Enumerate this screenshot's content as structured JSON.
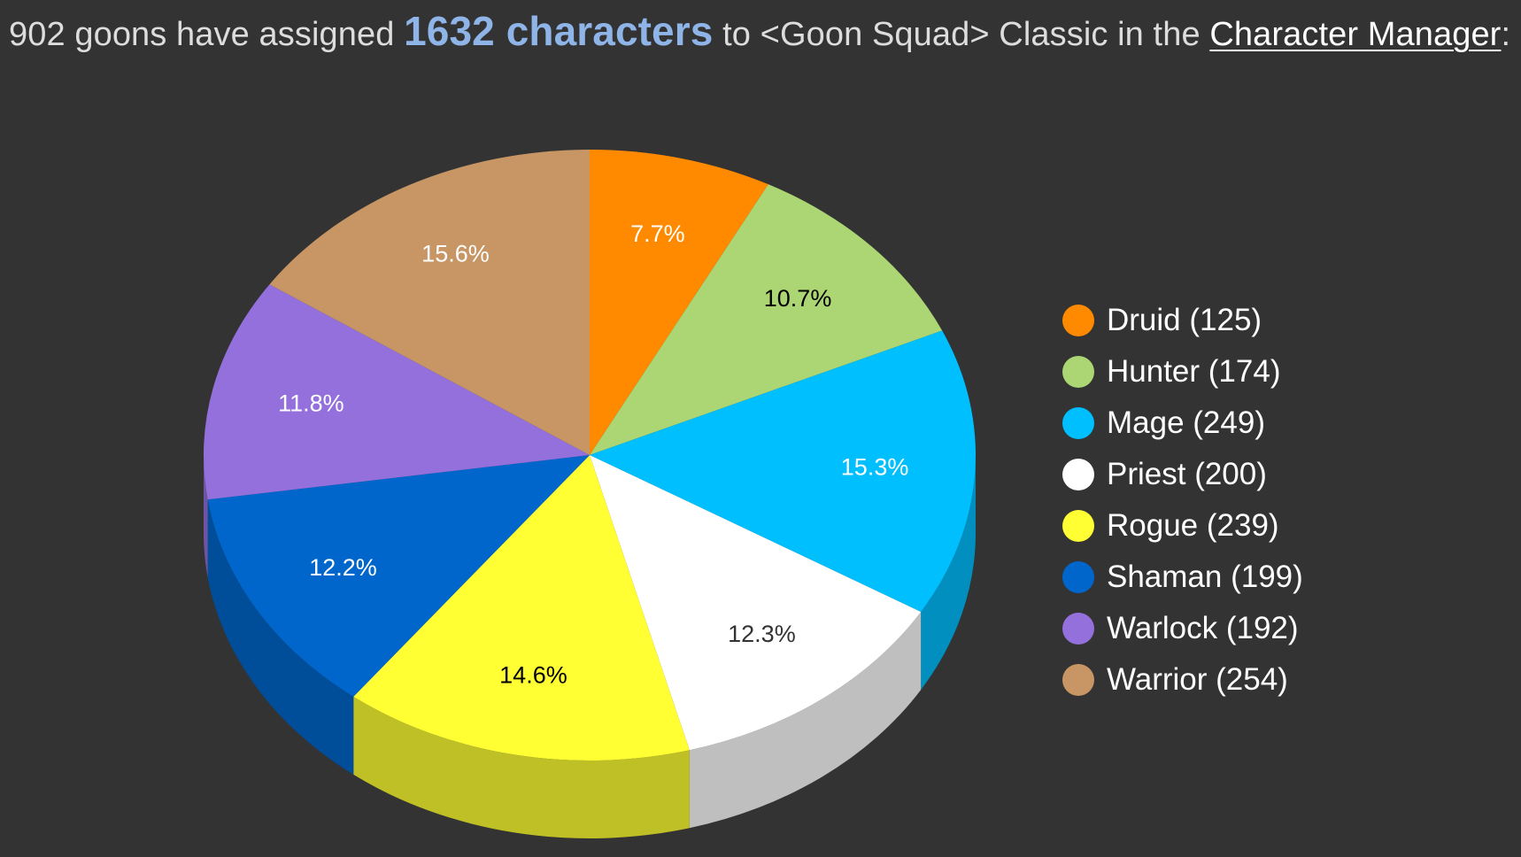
{
  "header": {
    "prefix": "902 goons have assigned",
    "count_text": "1632 characters",
    "middle": "to <Goon Squad> Classic in the",
    "link_text": "Character Manager",
    "suffix": ":"
  },
  "chart_data": {
    "type": "pie",
    "style": "3d",
    "total": 1632,
    "legend_position": "right",
    "slices": [
      {
        "name": "Druid",
        "value": 125,
        "label": "7.7%",
        "color": "#ff8a00",
        "label_color": "#ffffff",
        "legend": "Druid (125)"
      },
      {
        "name": "Hunter",
        "value": 174,
        "label": "10.7%",
        "color": "#acd573",
        "label_color": "#000000",
        "legend": "Hunter (174)"
      },
      {
        "name": "Mage",
        "value": 249,
        "label": "15.3%",
        "color": "#00bfff",
        "label_color": "#ffffff",
        "legend": "Mage (249)"
      },
      {
        "name": "Priest",
        "value": 200,
        "label": "12.3%",
        "color": "#ffffff",
        "label_color": "#333333",
        "legend": "Priest (200)"
      },
      {
        "name": "Rogue",
        "value": 239,
        "label": "14.6%",
        "color": "#ffff33",
        "label_color": "#000000",
        "legend": "Rogue (239)"
      },
      {
        "name": "Shaman",
        "value": 199,
        "label": "12.2%",
        "color": "#0066cc",
        "label_color": "#ffffff",
        "legend": "Shaman (199)"
      },
      {
        "name": "Warlock",
        "value": 192,
        "label": "11.8%",
        "color": "#9370db",
        "label_color": "#ffffff",
        "legend": "Warlock (192)"
      },
      {
        "name": "Warrior",
        "value": 254,
        "label": "15.6%",
        "color": "#c79664",
        "label_color": "#ffffff",
        "legend": "Warrior (254)"
      }
    ]
  }
}
